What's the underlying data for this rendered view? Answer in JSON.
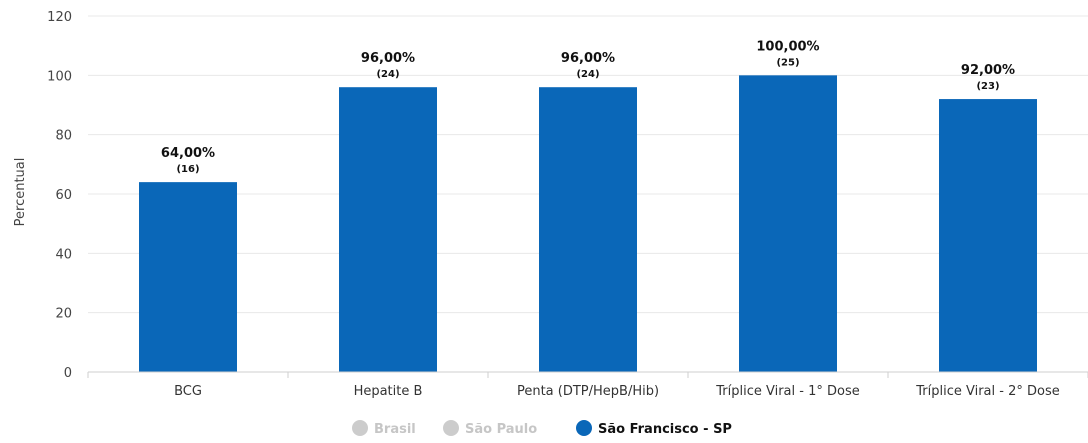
{
  "chart_data": {
    "type": "bar",
    "title": "",
    "xlabel": "",
    "ylabel": "Percentual",
    "ylim": [
      0,
      120
    ],
    "yticks": [
      0,
      20,
      40,
      60,
      80,
      100,
      120
    ],
    "categories": [
      "BCG",
      "Hepatite B",
      "Penta (DTP/HepB/Hib)",
      "Tríplice Viral - 1° Dose",
      "Tríplice Viral - 2° Dose"
    ],
    "series": [
      {
        "name": "São Francisco - SP",
        "color": "#0a67b8",
        "values": [
          64,
          96,
          96,
          100,
          92
        ],
        "value_labels": [
          "64,00%",
          "96,00%",
          "96,00%",
          "100,00%",
          "92,00%"
        ],
        "count_labels": [
          "(16)",
          "(24)",
          "(24)",
          "(25)",
          "(23)"
        ]
      }
    ],
    "grid": true,
    "legend": {
      "position": "bottom-center",
      "items": [
        {
          "label": "Brasil",
          "color": "#cccccc",
          "active": false
        },
        {
          "label": "São Paulo",
          "color": "#cccccc",
          "active": false
        },
        {
          "label": "São Francisco - SP",
          "color": "#0a67b8",
          "active": true
        }
      ]
    }
  }
}
